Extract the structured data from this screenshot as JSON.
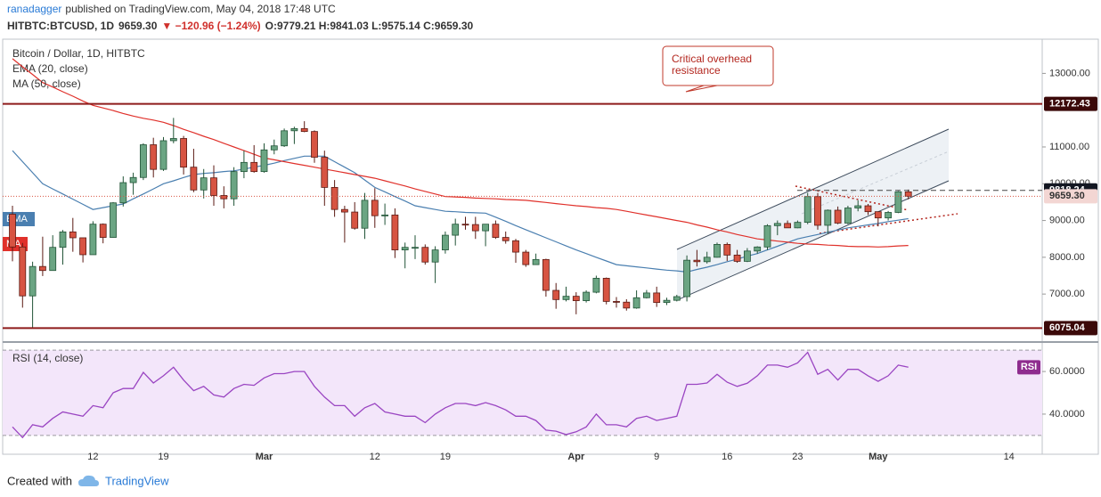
{
  "header": {
    "author": "ranadagger",
    "published": "published on TradingView.com, May 04, 2018 17:48 UTC",
    "symbol": "HITBTC:BTCUSD, 1D",
    "last": "9659.30",
    "change": "▼ −120.96 (−1.24%)",
    "ohlc": "O:9779.21 H:9841.03 L:9575.14 C:9659.30"
  },
  "annotation": [
    "Critical overhead",
    "resistance"
  ],
  "footer": {
    "created": "Created with",
    "brand": "TradingView"
  },
  "chart_data": [
    {
      "type": "candlestick",
      "title": "Bitcoin / Dollar, 1D, HITBTC",
      "categories": [
        null,
        null,
        null,
        null,
        null,
        null,
        null,
        null,
        "12",
        null,
        null,
        null,
        null,
        null,
        null,
        "19",
        null,
        null,
        null,
        null,
        null,
        null,
        null,
        null,
        null,
        "Mar",
        null,
        null,
        null,
        null,
        null,
        null,
        null,
        null,
        null,
        null,
        "12",
        null,
        null,
        null,
        null,
        null,
        null,
        "19",
        null,
        null,
        null,
        null,
        null,
        null,
        null,
        null,
        null,
        null,
        null,
        null,
        "Apr",
        null,
        null,
        null,
        null,
        null,
        null,
        null,
        "9",
        null,
        null,
        null,
        null,
        null,
        null,
        "16",
        null,
        null,
        null,
        null,
        null,
        null,
        "23",
        null,
        null,
        null,
        null,
        null,
        null,
        null,
        "May",
        null,
        null,
        null,
        null,
        null,
        null,
        null,
        null,
        null,
        null,
        null,
        null,
        "14",
        null,
        null
      ],
      "open": [
        9170,
        8280,
        6950,
        7750,
        7640,
        8270,
        8690,
        8530,
        8070,
        8900,
        8540,
        9480,
        10030,
        10170,
        11060,
        10390,
        11170,
        11230,
        10450,
        9830,
        10160,
        9680,
        9590,
        10330,
        10580,
        10330,
        10920,
        11030,
        11440,
        11500,
        11420,
        10720,
        9900,
        9300,
        9230,
        8790,
        9550,
        9130,
        9150,
        8200,
        8270,
        8270,
        7870,
        8200,
        8600,
        8900,
        8890,
        8720,
        8900,
        8540,
        8450,
        8140,
        7800,
        7940,
        7100,
        6850,
        6940,
        6820,
        7050,
        7430,
        6800,
        6780,
        6620,
        6900,
        7030,
        6770,
        6830,
        6930,
        7920,
        7880,
        8000,
        8350,
        8060,
        7890,
        8170,
        8280,
        8860,
        8920,
        8800,
        8950,
        9650,
        8870,
        9280,
        8930,
        9340,
        9400,
        9240,
        9070,
        9220,
        9779.21,
        null,
        null,
        null,
        null,
        null,
        null,
        null,
        null,
        null,
        null,
        null,
        null
      ],
      "high": [
        9400,
        8390,
        7880,
        8560,
        8600,
        8740,
        9070,
        8530,
        8980,
        8920,
        9500,
        10200,
        10300,
        11100,
        11250,
        11270,
        11790,
        11300,
        10950,
        10400,
        10500,
        9930,
        10450,
        10900,
        11050,
        11100,
        11200,
        11500,
        11550,
        11700,
        11450,
        10900,
        10100,
        9400,
        9500,
        9750,
        9880,
        9460,
        9330,
        8400,
        8600,
        8350,
        8300,
        8700,
        9050,
        9100,
        9100,
        8900,
        9000,
        8700,
        8500,
        8200,
        8100,
        7960,
        7300,
        7200,
        7050,
        7100,
        7500,
        7450,
        6920,
        6860,
        7100,
        7110,
        7200,
        6900,
        6980,
        8050,
        8200,
        8150,
        8400,
        8400,
        8200,
        8250,
        8300,
        8900,
        9000,
        9000,
        9000,
        9750,
        9750,
        9300,
        9380,
        9400,
        9550,
        9450,
        9240,
        9260,
        9800,
        9841.03,
        null,
        null,
        null,
        null,
        null,
        null,
        null,
        null,
        null,
        null,
        null,
        null
      ],
      "low": [
        7890,
        6630,
        6075.04,
        7490,
        7640,
        7800,
        8150,
        7860,
        8070,
        8380,
        8530,
        9380,
        9700,
        10100,
        10170,
        10350,
        11100,
        10250,
        9770,
        9600,
        9400,
        9330,
        9400,
        10150,
        10300,
        10300,
        10800,
        11000,
        11080,
        11400,
        10570,
        9400,
        9100,
        8400,
        8750,
        8500,
        8800,
        8880,
        7980,
        7700,
        7950,
        7800,
        7300,
        8100,
        8320,
        8750,
        8500,
        8300,
        8500,
        8370,
        7850,
        7740,
        7800,
        6930,
        6600,
        6800,
        6450,
        6770,
        7020,
        6720,
        6630,
        6550,
        6600,
        6880,
        6650,
        6700,
        6800,
        6800,
        7750,
        7830,
        7990,
        7900,
        7850,
        7870,
        8100,
        8200,
        8600,
        8800,
        8790,
        8900,
        8750,
        8650,
        8900,
        8900,
        9250,
        9150,
        8840,
        9000,
        9200,
        9575.14,
        null,
        null,
        null,
        null,
        null,
        null,
        null,
        null,
        null,
        null,
        null,
        null
      ],
      "close": [
        8280,
        6950,
        7750,
        7640,
        8270,
        8690,
        8530,
        8070,
        8900,
        8540,
        9480,
        10030,
        10170,
        11060,
        10390,
        11170,
        11230,
        10450,
        9830,
        10160,
        9680,
        9590,
        10330,
        10580,
        10330,
        10920,
        11030,
        11440,
        11500,
        11420,
        10720,
        9900,
        9300,
        9230,
        8790,
        9550,
        9130,
        9150,
        8200,
        8270,
        8270,
        7870,
        8200,
        8600,
        8900,
        8890,
        8720,
        8900,
        8540,
        8450,
        8140,
        7800,
        7940,
        7100,
        6850,
        6940,
        6820,
        7050,
        7430,
        6800,
        6780,
        6620,
        6900,
        7030,
        6770,
        6830,
        6930,
        7920,
        7880,
        8000,
        8350,
        8060,
        7890,
        8170,
        8280,
        8860,
        8920,
        8800,
        8950,
        9650,
        8870,
        9280,
        8930,
        9340,
        9400,
        9240,
        9070,
        9220,
        9780,
        9659.3,
        null,
        null,
        null,
        null,
        null,
        null,
        null,
        null,
        null,
        null,
        null,
        null
      ],
      "up_color": "#6ba583",
      "up_border": "#225437",
      "down_color": "#d75442",
      "down_border": "#5b1a13",
      "series": [
        {
          "name": "EMA (20, close)",
          "tag": "EMA",
          "color": "#4a7fb0",
          "values": [
            10900,
            10600,
            10300,
            10000,
            9860,
            9720,
            9580,
            9440,
            9300,
            9350,
            9400,
            9450,
            9590,
            9720,
            9860,
            10000,
            10080,
            10170,
            10250,
            10280,
            10300,
            10330,
            10350,
            10400,
            10450,
            10500,
            10560,
            10630,
            10690,
            10750,
            10750,
            10750,
            10600,
            10450,
            10300,
            10100,
            9900,
            9780,
            9650,
            9530,
            9400,
            9350,
            9300,
            9250,
            9240,
            9220,
            9210,
            9200,
            9090,
            8980,
            8860,
            8750,
            8640,
            8530,
            8420,
            8310,
            8200,
            8100,
            8000,
            7900,
            7800,
            7770,
            7740,
            7710,
            7680,
            7650,
            7630,
            7600,
            7670,
            7730,
            7800,
            7880,
            7950,
            8030,
            8100,
            8200,
            8300,
            8400,
            8500,
            8560,
            8620,
            8680,
            8740,
            8800,
            8840,
            8880,
            8920,
            8970,
            9010,
            9050,
            null,
            null,
            null,
            null,
            null,
            null,
            null,
            null,
            null,
            null,
            null,
            null
          ]
        },
        {
          "name": "MA (50, close)",
          "tag": "MA",
          "color": "#e0312b",
          "values": [
            13400,
            13180,
            12970,
            12750,
            12630,
            12500,
            12380,
            12250,
            12130,
            12060,
            11990,
            11910,
            11840,
            11780,
            11730,
            11670,
            11580,
            11480,
            11390,
            11290,
            11200,
            11100,
            11000,
            10900,
            10800,
            10700,
            10650,
            10600,
            10550,
            10500,
            10450,
            10400,
            10350,
            10300,
            10250,
            10200,
            10150,
            10080,
            10010,
            9940,
            9860,
            9790,
            9720,
            9650,
            9640,
            9630,
            9610,
            9600,
            9590,
            9570,
            9560,
            9550,
            9520,
            9490,
            9460,
            9430,
            9400,
            9380,
            9350,
            9330,
            9300,
            9250,
            9200,
            9150,
            9100,
            9050,
            9000,
            8950,
            8880,
            8820,
            8750,
            8690,
            8620,
            8560,
            8500,
            8470,
            8440,
            8410,
            8380,
            8360,
            8350,
            8330,
            8320,
            8300,
            8290,
            8290,
            8280,
            8290,
            8310,
            8320,
            null,
            null,
            null,
            null,
            null,
            null,
            null,
            null,
            null,
            null,
            null,
            null
          ]
        }
      ],
      "levels": [
        {
          "at": 12172.43,
          "line": "solid",
          "color": "#8e1b1b",
          "label_color": "#3b0909",
          "text_color": "#ffffff"
        },
        {
          "at": 6075.04,
          "line": "solid",
          "color": "#8e1b1b",
          "label_color": "#3b0909",
          "text_color": "#ffffff"
        },
        {
          "at": 9818.24,
          "line": "dashed",
          "color": "#444444",
          "label_color": "#131722",
          "text_color": "#ffffff"
        },
        {
          "at": {
            "value": 9659.3,
            "label": "9659.30"
          },
          "line": "dotted",
          "color": "#d75442",
          "label_color": "#f3d6d3",
          "text_color": "#333333"
        }
      ],
      "ylim": [
        5720,
        13930
      ],
      "yticks": [
        {
          "value": 7000,
          "label": "7000.00"
        },
        {
          "value": 8000,
          "label": "8000.00"
        },
        {
          "value": 9000,
          "label": "9000.00"
        },
        {
          "value": 10000,
          "label": "10000.00"
        },
        {
          "value": 11000,
          "label": "11000.00"
        },
        {
          "value": 13000,
          "label": "13000.00"
        }
      ],
      "grid": false
    },
    {
      "type": "line",
      "title": "RSI (14, close)",
      "series": [
        {
          "name": "RSI",
          "color": "#9a45c2",
          "values": [
            34,
            29,
            35,
            34,
            38,
            41,
            40,
            39,
            44,
            43,
            50,
            52,
            52,
            59.6,
            54.6,
            58,
            62,
            56,
            51,
            53,
            49,
            48,
            52,
            54,
            53.5,
            57,
            59,
            59,
            60,
            60,
            53,
            48,
            44,
            44,
            39,
            43,
            45,
            41,
            40,
            39,
            39,
            36,
            40,
            43,
            45,
            45,
            44,
            45.4,
            44,
            42,
            39,
            39,
            37,
            32.5,
            32,
            30.4,
            31.7,
            34,
            40,
            35,
            35,
            34,
            38,
            39,
            37,
            38,
            39,
            54,
            54,
            54.6,
            58.7,
            55,
            53,
            54.5,
            58,
            63,
            63,
            62,
            64,
            69,
            58.7,
            61,
            56,
            61,
            61,
            58,
            55.4,
            58,
            63,
            62,
            null,
            null,
            null,
            null,
            null,
            null,
            null,
            null,
            null,
            null,
            null,
            null
          ]
        }
      ],
      "band": [
        30,
        70
      ],
      "band_color": "#f3e6fa",
      "ylim": [
        22,
        73
      ],
      "yticks": [
        {
          "value": 40,
          "label": "40.0000"
        },
        {
          "value": 60,
          "label": "60.0000"
        }
      ],
      "grid": false
    }
  ]
}
